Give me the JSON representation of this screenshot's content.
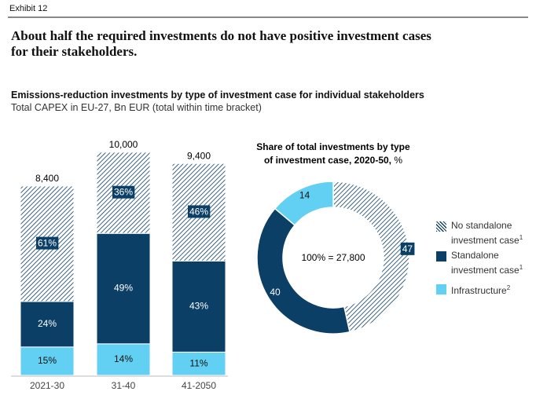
{
  "header": {
    "exhibit": "Exhibit 12",
    "headline": "About half the required investments do not have positive investment cases for their stakeholders."
  },
  "chart_data": [
    {
      "type": "stacked-bar",
      "title": "Emissions-reduction investments by type of investment case for individual stakeholders",
      "subtitle": "Total CAPEX in EU-27, Bn EUR (total within time bracket)",
      "categories": [
        "2021-30",
        "31-40",
        "41-2050"
      ],
      "totals": {
        "values": [
          8400,
          10000,
          9400
        ],
        "value_labels": [
          "8,400",
          "10,000",
          "9,400"
        ]
      },
      "series": [
        {
          "name": "No standalone investment case",
          "footnote": "1",
          "color": "#0b3f66",
          "pattern": "hatch",
          "values": [
            61,
            36,
            46
          ],
          "value_labels": [
            "61%",
            "36%",
            "46%"
          ]
        },
        {
          "name": "Standalone investment case",
          "footnote": "1",
          "color": "#0b3f66",
          "values": [
            24,
            49,
            43
          ],
          "value_labels": [
            "24%",
            "49%",
            "43%"
          ]
        },
        {
          "name": "Infrastructure",
          "footnote": "2",
          "color": "#62d0f2",
          "values": [
            15,
            14,
            11
          ],
          "value_labels": [
            "15%",
            "14%",
            "11%"
          ]
        }
      ]
    },
    {
      "type": "donut",
      "title": [
        "Share of total investments by type",
        "of investment case, 2020-50,"
      ],
      "unit": "%",
      "center_label": "100% = 27,800",
      "values": [
        47,
        40,
        14
      ],
      "colors": [
        "#0b3f66",
        "#0b3f66",
        "#62d0f2"
      ],
      "patterns": [
        "hatch",
        null,
        null
      ]
    }
  ]
}
